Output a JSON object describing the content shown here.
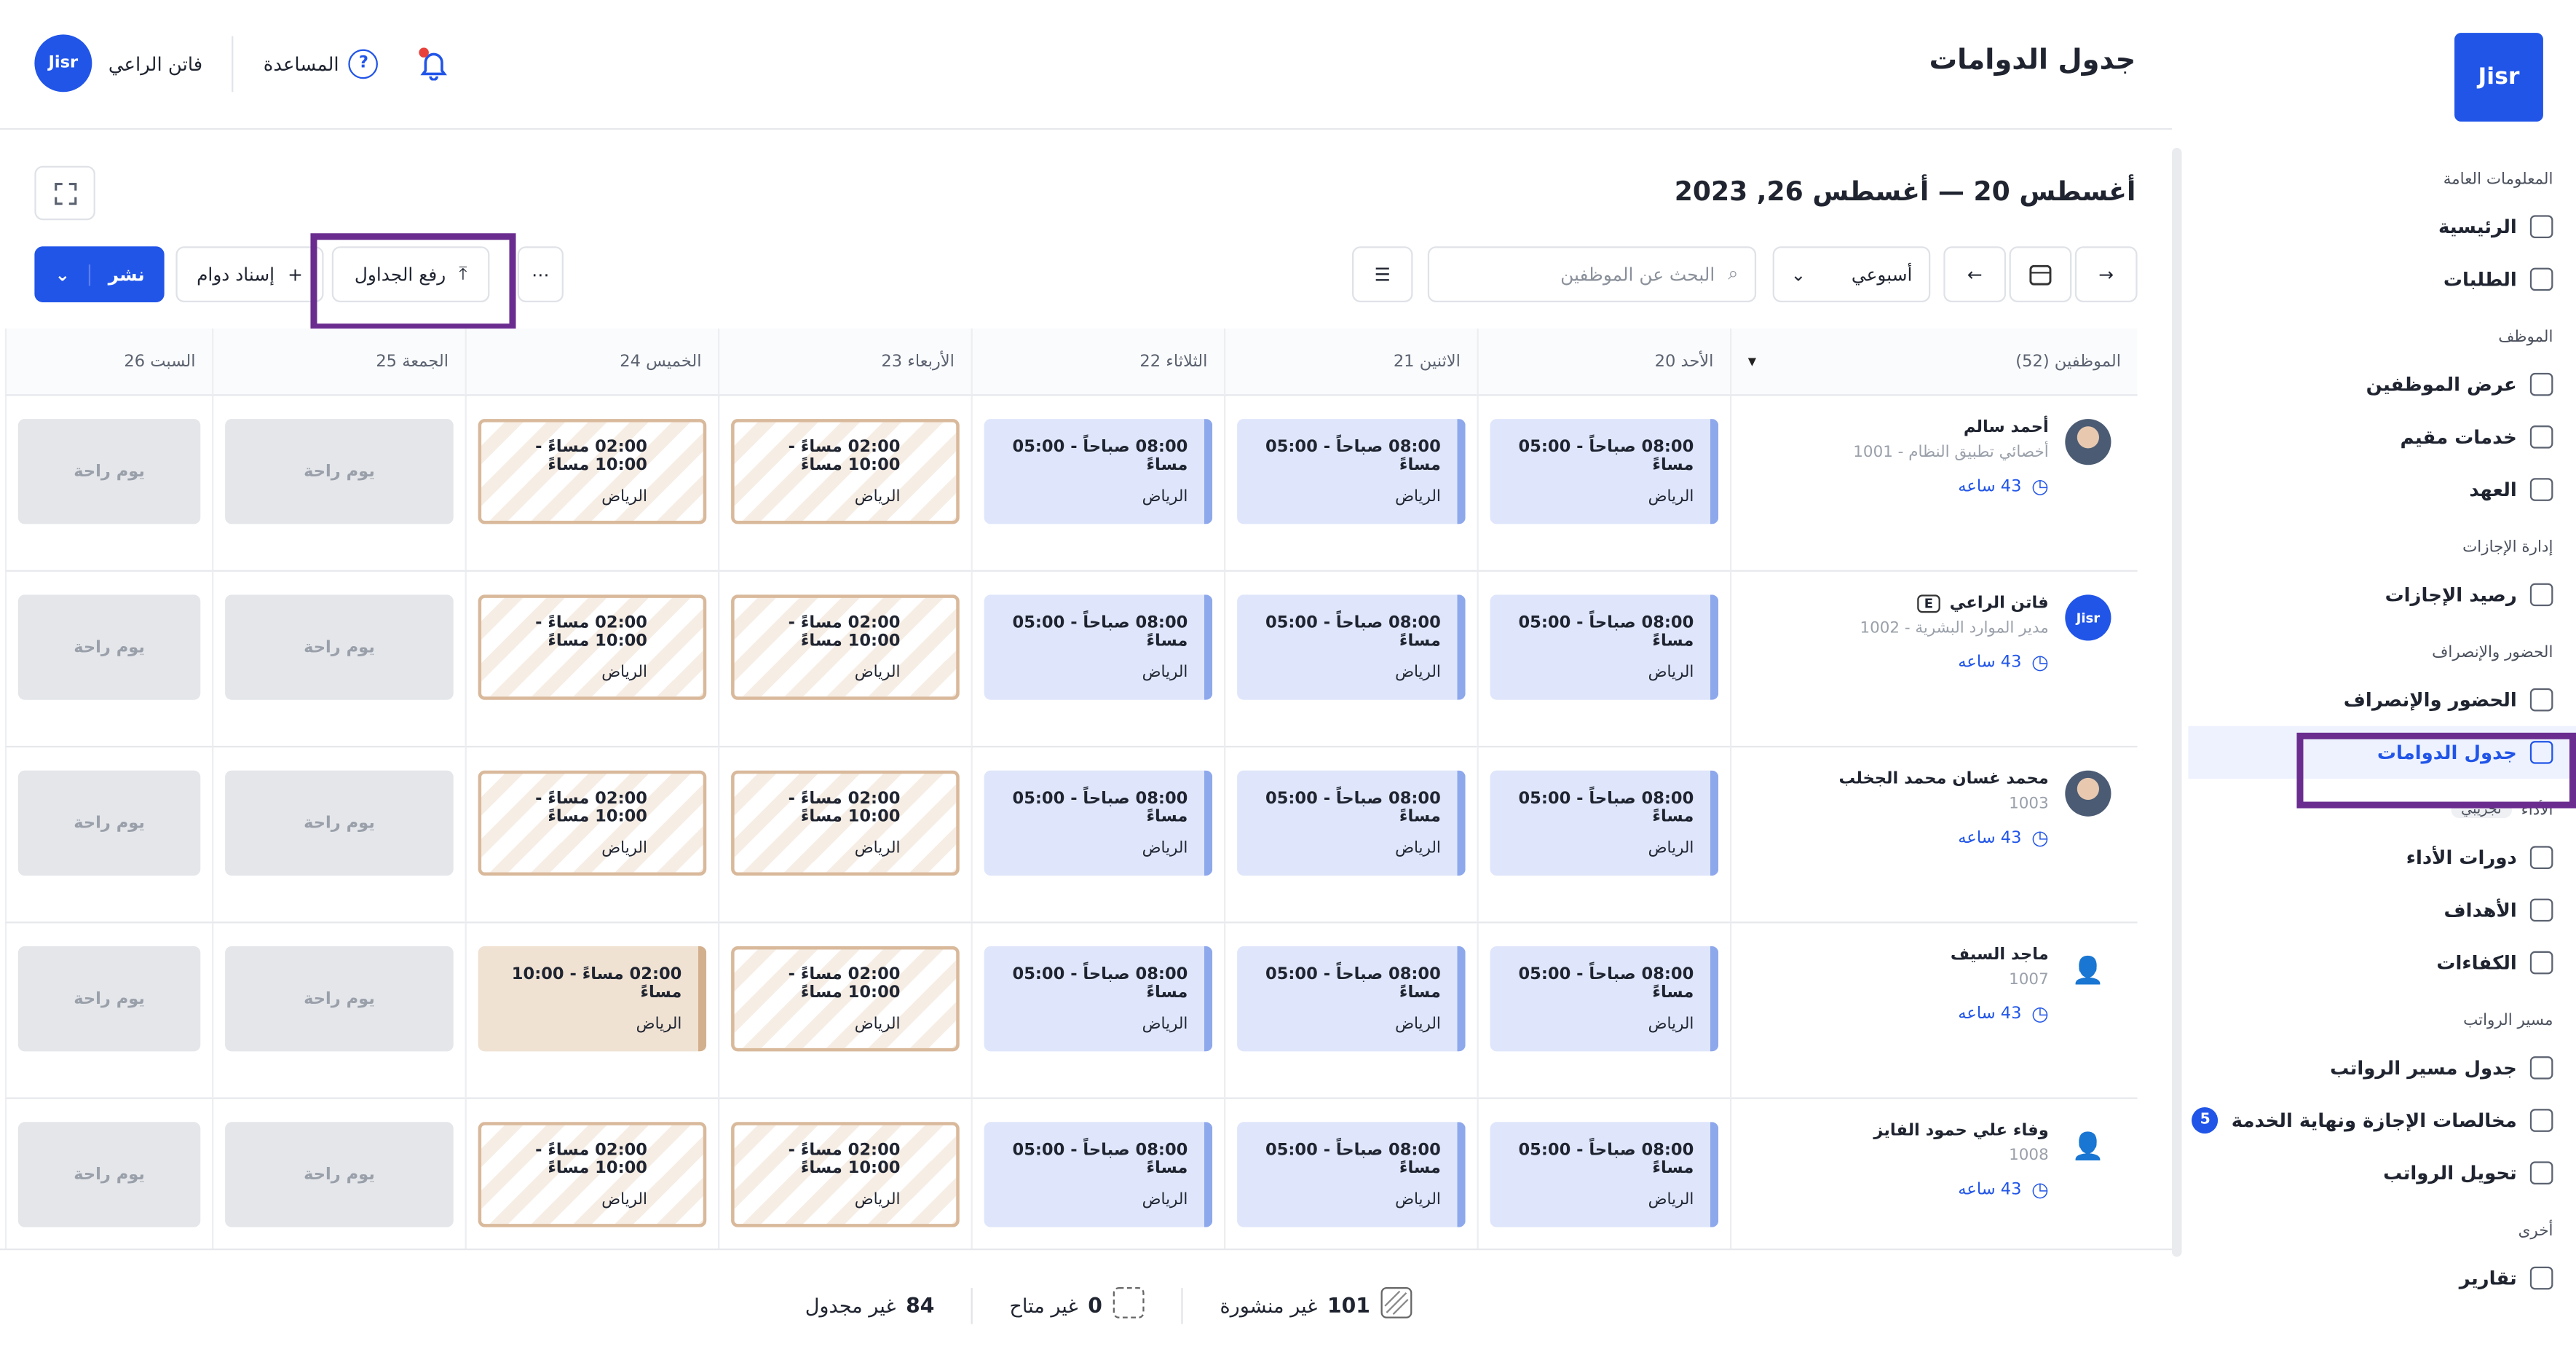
{
  "header": {
    "title": "جدول الدوامات",
    "avatar": "Jisr",
    "user_name": "فاتن الراعي",
    "help": "المساعدة"
  },
  "toolbar": {
    "date_range": "أغسطس 20 — أغسطس 26, 2023",
    "view": "أسبوعي",
    "search_placeholder": "البحث عن الموظفين",
    "upload": "رفع الجداول",
    "assign": "إسناد دوام",
    "publish": "نشر"
  },
  "table": {
    "employees_header": "الموظفين (52)",
    "days": [
      "الأحد 20",
      "الاثنين 21",
      "الثلاثاء 22",
      "الأربعاء 23",
      "الخميس 24",
      "الجمعة 25",
      "السبت 26"
    ],
    "rows": [
      {
        "name": "أحمد سالم",
        "subtitle": "أخصائي تطبيق النظام - 1001",
        "hours": "43 ساعه",
        "cells": [
          {
            "status": "published",
            "time": "08:00 صباحاً - 05:00 مساءً",
            "location": "الرياض"
          },
          {
            "status": "published",
            "time": "08:00 صباحاً - 05:00 مساءً",
            "location": "الرياض"
          },
          {
            "status": "published",
            "time": "08:00 صباحاً - 05:00 مساءً",
            "location": "الرياض"
          },
          {
            "status": "unpublished",
            "time": "02:00 مساءً - 10:00 مساءً",
            "location": "الرياض"
          },
          {
            "status": "unpublished",
            "time": "02:00 مساءً - 10:00 مساءً",
            "location": "الرياض"
          },
          {
            "status": "off",
            "time": "يوم راحة"
          },
          {
            "status": "off",
            "time": "يوم راحة"
          }
        ]
      },
      {
        "name": "فاتن الراعي",
        "badge": "E",
        "avatar": "Jisr",
        "subtitle": "مدير الموارد البشرية - 1002",
        "hours": "43 ساعه",
        "cells": [
          {
            "status": "published",
            "time": "08:00 صباحاً - 05:00 مساءً",
            "location": "الرياض"
          },
          {
            "status": "published",
            "time": "08:00 صباحاً - 05:00 مساءً",
            "location": "الرياض"
          },
          {
            "status": "published",
            "time": "08:00 صباحاً - 05:00 مساءً",
            "location": "الرياض"
          },
          {
            "status": "unpublished",
            "time": "02:00 مساءً - 10:00 مساءً",
            "location": "الرياض"
          },
          {
            "status": "unpublished",
            "time": "02:00 مساءً - 10:00 مساءً",
            "location": "الرياض"
          },
          {
            "status": "off",
            "time": "يوم راحة"
          },
          {
            "status": "off",
            "time": "يوم راحة"
          }
        ]
      },
      {
        "name": "محمد غسان محمد الجخلب",
        "subtitle": "1003",
        "hours": "43 ساعه",
        "cells": [
          {
            "status": "published",
            "time": "08:00 صباحاً - 05:00 مساءً",
            "location": "الرياض"
          },
          {
            "status": "published",
            "time": "08:00 صباحاً - 05:00 مساءً",
            "location": "الرياض"
          },
          {
            "status": "published",
            "time": "08:00 صباحاً - 05:00 مساءً",
            "location": "الرياض"
          },
          {
            "status": "unpublished",
            "time": "02:00 مساءً - 10:00 مساءً",
            "location": "الرياض"
          },
          {
            "status": "unpublished",
            "time": "02:00 مساءً - 10:00 مساءً",
            "location": "الرياض"
          },
          {
            "status": "off",
            "time": "يوم راحة"
          },
          {
            "status": "off",
            "time": "يوم راحة"
          }
        ]
      },
      {
        "name": "ماجد السيف",
        "subtitle": "1007",
        "hours": "43 ساعه",
        "cells": [
          {
            "status": "published",
            "time": "08:00 صباحاً - 05:00 مساءً",
            "location": "الرياض"
          },
          {
            "status": "published",
            "time": "08:00 صباحاً - 05:00 مساءً",
            "location": "الرياض"
          },
          {
            "status": "published",
            "time": "08:00 صباحاً - 05:00 مساءً",
            "location": "الرياض"
          },
          {
            "status": "unpublished",
            "time": "02:00 مساءً - 10:00 مساءً",
            "location": "الرياض"
          },
          {
            "status": "modified",
            "time": "02:00 مساءً - 10:00 مساءً",
            "location": "الرياض"
          },
          {
            "status": "off",
            "time": "يوم راحة"
          },
          {
            "status": "off",
            "time": "يوم راحة"
          }
        ]
      },
      {
        "name": "وفاء علي حمود الفايز",
        "subtitle": "1008",
        "hours": "43 ساعه",
        "cells": [
          {
            "status": "published",
            "time": "08:00 صباحاً - 05:00 مساءً",
            "location": "الرياض"
          },
          {
            "status": "published",
            "time": "08:00 صباحاً - 05:00 مساءً",
            "location": "الرياض"
          },
          {
            "status": "published",
            "time": "08:00 صباحاً - 05:00 مساءً",
            "location": "الرياض"
          },
          {
            "status": "unpublished",
            "time": "02:00 مساءً - 10:00 مساءً",
            "location": "الرياض"
          },
          {
            "status": "unpublished",
            "time": "02:00 مساءً - 10:00 مساءً",
            "location": "الرياض"
          },
          {
            "status": "off",
            "time": "يوم راحة"
          },
          {
            "status": "off",
            "time": "يوم راحة"
          }
        ]
      }
    ]
  },
  "footer": {
    "stats": [
      {
        "value": 101,
        "label": "غير منشورة"
      },
      {
        "value": 0,
        "label": "غير متاح"
      },
      {
        "value": 84,
        "label": "غير مجدول"
      }
    ]
  },
  "sidebar": {
    "logo": "Jisr",
    "sections": [
      {
        "title": "المعلومات العامة",
        "items": [
          {
            "label": "الرئيسية"
          },
          {
            "label": "الطلبات"
          }
        ]
      },
      {
        "title": "الموظف",
        "items": [
          {
            "label": "عرض الموظفين"
          },
          {
            "label": "خدمات مقيم"
          },
          {
            "label": "العهد"
          }
        ]
      },
      {
        "title": "إدارة الإجازات",
        "items": [
          {
            "label": "رصيد الإجازات"
          }
        ]
      },
      {
        "title": "الحضور والإنصراف",
        "items": [
          {
            "label": "الحضور والإنصراف"
          },
          {
            "label": "جدول الدوامات",
            "active": true
          }
        ]
      },
      {
        "title": "الأداء",
        "tag": "تجريبي",
        "items": [
          {
            "label": "دورات الأداء"
          },
          {
            "label": "الأهداف"
          },
          {
            "label": "الكفاءات"
          }
        ]
      },
      {
        "title": "مسير الرواتب",
        "items": [
          {
            "label": "جدول مسير الرواتب"
          },
          {
            "label": "مخالصات الإجازة ونهاية الخدمة",
            "badge": 5
          },
          {
            "label": "تحويل الرواتب"
          }
        ]
      },
      {
        "title": "أخرى",
        "items": [
          {
            "label": "تقارير"
          }
        ]
      }
    ]
  }
}
